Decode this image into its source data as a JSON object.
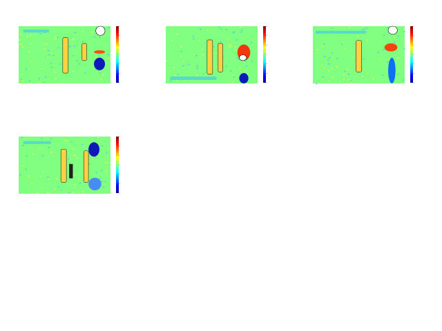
{
  "figure": {
    "panel_count": 4
  },
  "chart_data": [
    {
      "type": "heatmap",
      "colormap": "jet",
      "background_color": "#80ff80",
      "colorbar": true,
      "features": [
        {
          "kind": "speckle",
          "color": "#40c0ff"
        },
        {
          "kind": "ridge",
          "color": "#ffd040"
        },
        {
          "kind": "pair",
          "color": "#ffd040"
        },
        {
          "kind": "hotspot",
          "color": "#0000c0"
        },
        {
          "kind": "hotspot",
          "color": "#ff4000"
        },
        {
          "kind": "halo",
          "color": "#ffffff"
        }
      ]
    },
    {
      "type": "heatmap",
      "colormap": "jet",
      "background_color": "#80ff80",
      "colorbar": true,
      "features": [
        {
          "kind": "speckle",
          "color": "#40c0ff"
        },
        {
          "kind": "ridge",
          "color": "#ffd040"
        },
        {
          "kind": "pair",
          "color": "#ffd040"
        },
        {
          "kind": "hotspot",
          "color": "#ff2000"
        },
        {
          "kind": "hotspot",
          "color": "#0000c0"
        },
        {
          "kind": "halo",
          "color": "#ffffff"
        }
      ]
    },
    {
      "type": "heatmap",
      "colormap": "jet",
      "background_color": "#80ff80",
      "colorbar": true,
      "features": [
        {
          "kind": "speckle",
          "color": "#40c0ff"
        },
        {
          "kind": "ridge",
          "color": "#ffd040"
        },
        {
          "kind": "hotspot",
          "color": "#ff3000"
        },
        {
          "kind": "hotspot",
          "color": "#0060ff"
        },
        {
          "kind": "halo",
          "color": "#ffffff"
        }
      ]
    },
    {
      "type": "heatmap",
      "colormap": "jet",
      "background_color": "#80ff80",
      "colorbar": true,
      "features": [
        {
          "kind": "speckle",
          "color": "#40c0ff"
        },
        {
          "kind": "ridge",
          "color": "#ffd040"
        },
        {
          "kind": "pair",
          "color": "#ffd040"
        },
        {
          "kind": "hotspot",
          "color": "#0000c0"
        },
        {
          "kind": "hotspot",
          "color": "#4080ff"
        },
        {
          "kind": "dark-block",
          "color": "#202020"
        }
      ]
    }
  ]
}
